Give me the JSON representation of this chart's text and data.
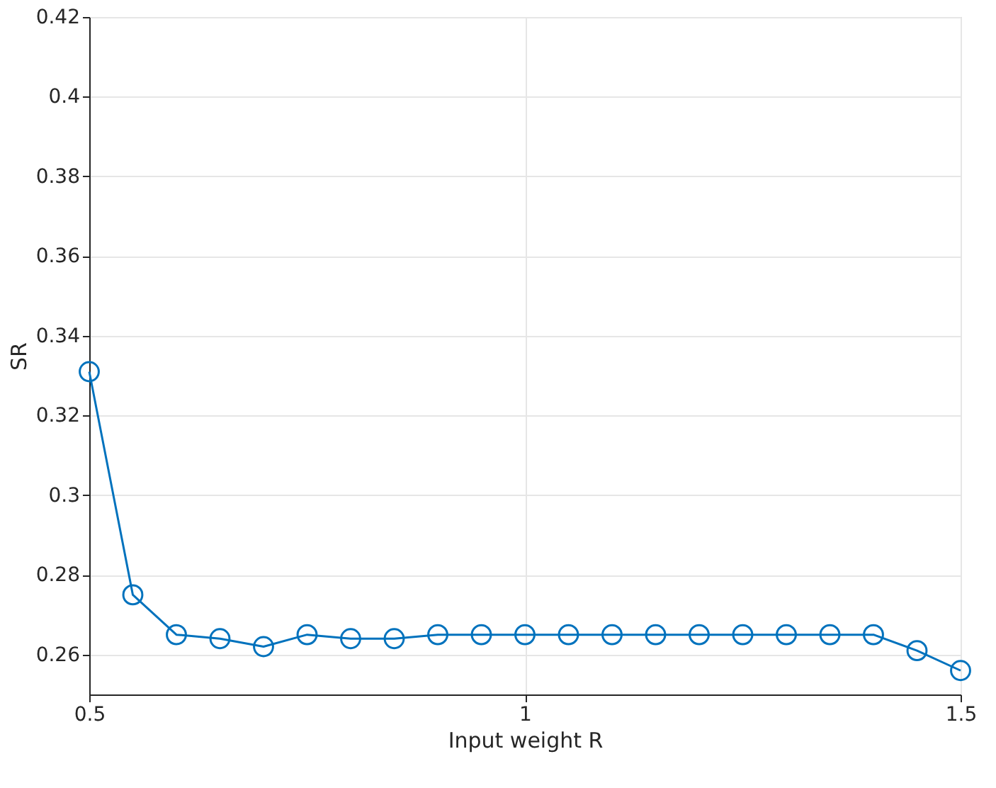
{
  "chart_data": {
    "type": "line",
    "xlabel": "Input weight R",
    "ylabel": "SR",
    "x": [
      0.5,
      0.55,
      0.6,
      0.65,
      0.7,
      0.75,
      0.8,
      0.85,
      0.9,
      0.95,
      1.0,
      1.05,
      1.1,
      1.15,
      1.2,
      1.25,
      1.3,
      1.35,
      1.4,
      1.45,
      1.5
    ],
    "series": [
      {
        "color": "#0072bd",
        "values": [
          0.331,
          0.275,
          0.265,
          0.264,
          0.262,
          0.265,
          0.264,
          0.264,
          0.265,
          0.265,
          0.265,
          0.265,
          0.265,
          0.265,
          0.265,
          0.265,
          0.265,
          0.265,
          0.265,
          0.261,
          0.256
        ]
      }
    ],
    "xlim": [
      0.5,
      1.5
    ],
    "xticks": [
      0.5,
      1,
      1.5
    ],
    "ylim": [
      0.25,
      0.42
    ],
    "yticks": [
      0.26,
      0.28,
      0.3,
      0.32,
      0.34,
      0.36,
      0.38,
      0.4,
      0.42
    ],
    "grid": true,
    "marker": "circle",
    "line_style": "solid"
  }
}
